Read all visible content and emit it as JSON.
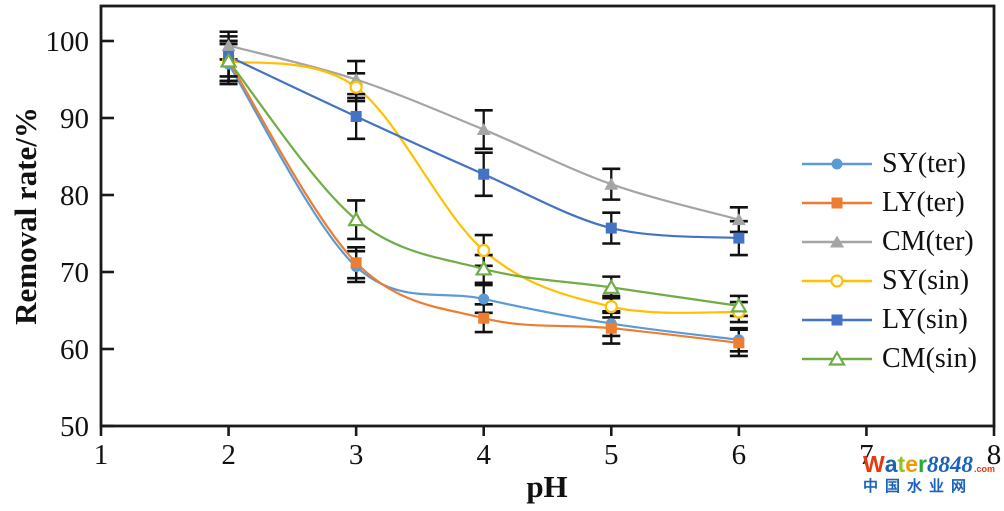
{
  "chart_data": {
    "type": "line",
    "title": "",
    "xlabel": "pH",
    "ylabel": "Removal rate/%",
    "xlim": [
      1,
      8
    ],
    "ylim": [
      50,
      104.7
    ],
    "xticks": [
      1,
      2,
      3,
      4,
      5,
      6,
      7,
      8
    ],
    "yticks": [
      50,
      60,
      70,
      80,
      90,
      100
    ],
    "grid": false,
    "legend_position": "right-inside",
    "error_bars": true,
    "x": [
      2,
      3,
      4,
      5,
      6
    ],
    "series": [
      {
        "name": "SY(ter)",
        "color": "#5B9BD5",
        "marker": "circle",
        "marker_fill": "filled",
        "values": [
          97.0,
          70.7,
          66.5,
          63.3,
          61.2
        ],
        "errors": [
          2.6,
          2.0,
          1.8,
          1.6,
          1.5
        ]
      },
      {
        "name": "LY(ter)",
        "color": "#ED7D31",
        "marker": "square",
        "marker_fill": "filled",
        "values": [
          97.4,
          71.2,
          64.0,
          62.7,
          60.8
        ],
        "errors": [
          2.6,
          2.0,
          1.8,
          2.0,
          1.7
        ]
      },
      {
        "name": "CM(ter)",
        "color": "#A5A5A5",
        "marker": "triangle",
        "marker_fill": "filled",
        "values": [
          99.4,
          95.0,
          88.5,
          81.4,
          76.8
        ],
        "errors": [
          1.8,
          2.4,
          2.5,
          2.0,
          1.6
        ]
      },
      {
        "name": "SY(sin)",
        "color": "#FFC000",
        "marker": "circle",
        "marker_fill": "open",
        "values": [
          97.4,
          94.0,
          72.8,
          65.5,
          64.8
        ],
        "errors": [
          2.6,
          1.8,
          2.0,
          1.4,
          1.3
        ]
      },
      {
        "name": "LY(sin)",
        "color": "#4472C4",
        "marker": "square",
        "marker_fill": "filled",
        "values": [
          98.0,
          90.2,
          82.7,
          75.7,
          74.4
        ],
        "errors": [
          2.6,
          2.9,
          2.8,
          2.0,
          2.2
        ]
      },
      {
        "name": "CM(sin)",
        "color": "#70AD47",
        "marker": "triangle",
        "marker_fill": "open",
        "values": [
          97.4,
          76.8,
          70.4,
          68.0,
          65.6
        ],
        "errors": [
          2.6,
          2.5,
          1.8,
          1.4,
          1.3
        ]
      }
    ]
  },
  "watermark": {
    "brand_letters": [
      {
        "ch": "W",
        "color": "#e8380d"
      },
      {
        "ch": "a",
        "color": "#1b62b9"
      },
      {
        "ch": "t",
        "color": "#8fc31f"
      },
      {
        "ch": "e",
        "color": "#f39800"
      },
      {
        "ch": "r",
        "color": "#22ac38"
      }
    ],
    "brand_number": {
      "text": "8848",
      "color": "#1b62b9"
    },
    "brand_suffix": {
      "text": ".com",
      "color": "#e8380d"
    },
    "line2": {
      "text": "中国水业网",
      "color": "#1b62b9"
    }
  },
  "colors": {
    "axis": "#1a1a1a",
    "error_bar": "#111111",
    "background": "#ffffff",
    "tick_label": "#111111"
  }
}
